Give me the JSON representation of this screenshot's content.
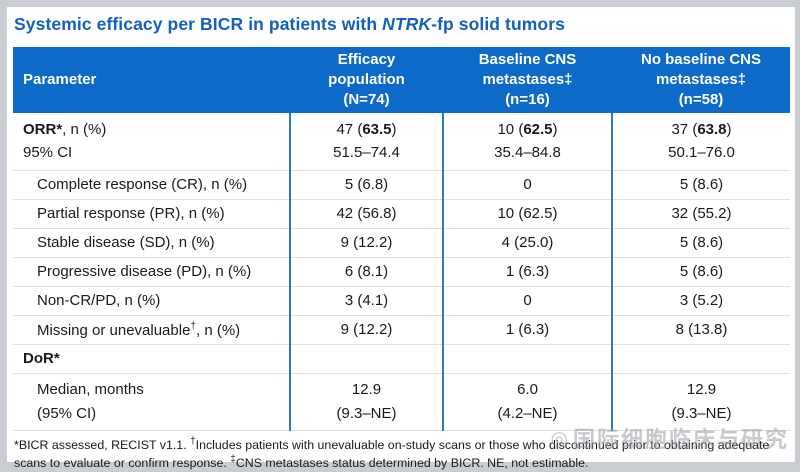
{
  "colors": {
    "title_blue": "#1261bd",
    "header_bg_blue": "#0d6ac8",
    "divider_blue": "#2a7db8",
    "row_line_gray": "#dde1e5",
    "frame_gray": "#c9cdd1"
  },
  "title": {
    "prefix": "Systemic efficacy per BICR in patients with ",
    "gene_italic": "NTRK",
    "suffix": "-fp solid tumors"
  },
  "table": {
    "columns": {
      "parameter": "Parameter",
      "efficacy": [
        "Efficacy",
        "population",
        "(N=74)"
      ],
      "baseline": [
        "Baseline CNS",
        "metastases‡",
        "(n=16)"
      ],
      "no_baseline": [
        "No baseline CNS",
        "metastases‡",
        "(n=58)"
      ]
    },
    "orr": {
      "label_bold": "ORR*",
      "label_rest": ", n (%)",
      "ci_label": "95% CI",
      "cells": [
        {
          "pre": "47 (",
          "bold": "63.5",
          "post": ")",
          "ci": "51.5–74.4"
        },
        {
          "pre": "10 (",
          "bold": "62.5",
          "post": ")",
          "ci": "35.4–84.8"
        },
        {
          "pre": "37 (",
          "bold": "63.8",
          "post": ")",
          "ci": "50.1–76.0"
        }
      ]
    },
    "response_rows": [
      {
        "label": "Complete response (CR), n (%)",
        "values": [
          "5 (6.8)",
          "0",
          "5 (8.6)"
        ]
      },
      {
        "label": "Partial response (PR), n (%)",
        "values": [
          "42 (56.8)",
          "10 (62.5)",
          "32 (55.2)"
        ]
      },
      {
        "label": "Stable disease (SD), n (%)",
        "values": [
          "9 (12.2)",
          "4 (25.0)",
          "5 (8.6)"
        ]
      },
      {
        "label": "Progressive disease (PD), n (%)",
        "values": [
          "6 (8.1)",
          "1 (6.3)",
          "5 (8.6)"
        ]
      },
      {
        "label": "Non-CR/PD, n (%)",
        "values": [
          "3 (4.1)",
          "0",
          "3 (5.2)"
        ]
      },
      {
        "label_main": "Missing or unevaluable",
        "label_sup": "†",
        "label_rest": ", n (%)",
        "values": [
          "9 (12.2)",
          "1 (6.3)",
          "8 (13.8)"
        ]
      }
    ],
    "dor": {
      "label_bold": "DoR*"
    },
    "median": {
      "label_line1": "Median, months",
      "label_line2": "(95% CI)",
      "cells": [
        {
          "line1": "12.9",
          "line2": "(9.3–NE)"
        },
        {
          "line1": "6.0",
          "line2": "(4.2–NE)"
        },
        {
          "line1": "12.9",
          "line2": "(9.3–NE)"
        }
      ]
    }
  },
  "footnote": {
    "part1": "*BICR assessed, RECIST v1.1. ",
    "sup1": "†",
    "part2": "Includes patients with unevaluable on-study scans or those who discontinued prior to obtaining adequate scans to evaluate or confirm response. ",
    "sup2": "‡",
    "part3": "CNS metastases status determined by BICR. NE, not estimable."
  },
  "watermark": {
    "logo": "◎",
    "text": "国际细胞临床与研究"
  }
}
